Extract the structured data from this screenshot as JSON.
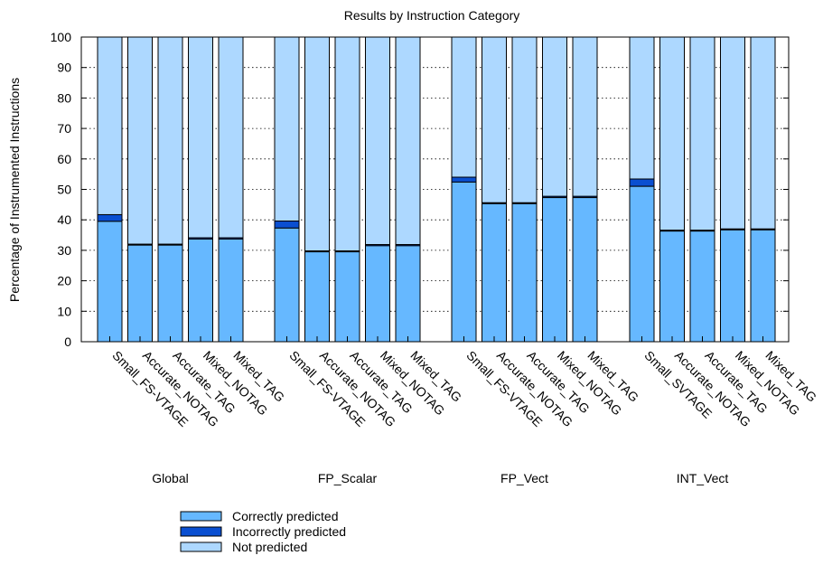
{
  "chart_data": {
    "type": "bar",
    "stacked": true,
    "title": "Results by Instruction Category",
    "xlabel": "",
    "ylabel": "Percentage of Instrumented Instructions",
    "ylim": [
      0,
      100
    ],
    "yticks": [
      0,
      10,
      20,
      30,
      40,
      50,
      60,
      70,
      80,
      90,
      100
    ],
    "grid": "horizontal dotted",
    "legend_position": "bottom-left",
    "groups": [
      {
        "name": "Global",
        "bars": [
          {
            "label": "Small_FS-VTAGE",
            "correct": 39.5,
            "incorrect": 2.2
          },
          {
            "label": "Accurate_NOTAG",
            "correct": 31.7,
            "incorrect": 0.3
          },
          {
            "label": "Accurate_TAG",
            "correct": 31.7,
            "incorrect": 0.3
          },
          {
            "label": "Mixed_NOTAG",
            "correct": 33.7,
            "incorrect": 0.4
          },
          {
            "label": "Mixed_TAG",
            "correct": 33.7,
            "incorrect": 0.4
          }
        ]
      },
      {
        "name": "FP_Scalar",
        "bars": [
          {
            "label": "Small_FS-VTAGE",
            "correct": 37.3,
            "incorrect": 2.3
          },
          {
            "label": "Accurate_NOTAG",
            "correct": 29.5,
            "incorrect": 0.3
          },
          {
            "label": "Accurate_TAG",
            "correct": 29.5,
            "incorrect": 0.3
          },
          {
            "label": "Mixed_NOTAG",
            "correct": 31.5,
            "incorrect": 0.4
          },
          {
            "label": "Mixed_TAG",
            "correct": 31.5,
            "incorrect": 0.4
          }
        ]
      },
      {
        "name": "FP_Vect",
        "bars": [
          {
            "label": "Small_FS-VTAGE",
            "correct": 52.4,
            "incorrect": 1.6
          },
          {
            "label": "Accurate_NOTAG",
            "correct": 45.3,
            "incorrect": 0.3
          },
          {
            "label": "Accurate_TAG",
            "correct": 45.3,
            "incorrect": 0.3
          },
          {
            "label": "Mixed_NOTAG",
            "correct": 47.3,
            "incorrect": 0.4
          },
          {
            "label": "Mixed_TAG",
            "correct": 47.3,
            "incorrect": 0.4
          }
        ]
      },
      {
        "name": "INT_Vect",
        "bars": [
          {
            "label": "Small_SVTAGE",
            "correct": 51.0,
            "incorrect": 2.4
          },
          {
            "label": "Accurate_NOTAG",
            "correct": 36.3,
            "incorrect": 0.3
          },
          {
            "label": "Accurate_TAG",
            "correct": 36.3,
            "incorrect": 0.3
          },
          {
            "label": "Mixed_NOTAG",
            "correct": 36.7,
            "incorrect": 0.3
          },
          {
            "label": "Mixed_TAG",
            "correct": 36.7,
            "incorrect": 0.3
          }
        ]
      }
    ],
    "series": [
      {
        "name": "Correctly predicted",
        "key": "correct",
        "color": "#66b8ff"
      },
      {
        "name": "Incorrectly predicted",
        "key": "incorrect",
        "color": "#0a4fd1"
      },
      {
        "name": "Not predicted",
        "key": "rest",
        "color": "#add8ff"
      }
    ]
  }
}
